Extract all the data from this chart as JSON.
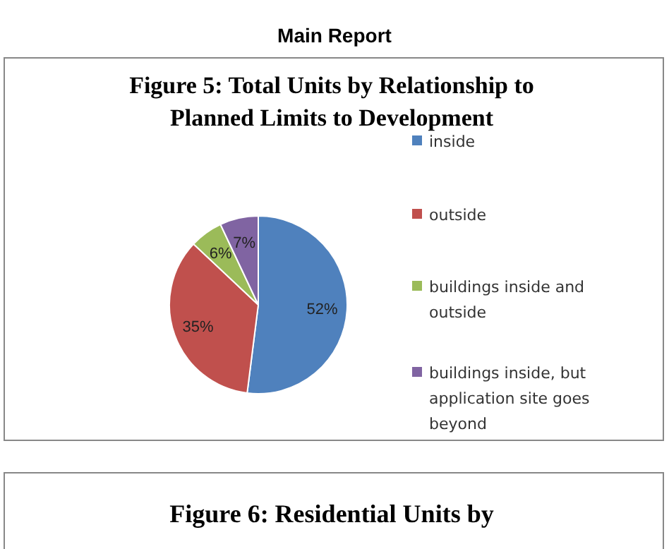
{
  "chart_data": {
    "type": "pie",
    "title": "Figure 5: Total Units by Relationship to Planned Limits to Development",
    "categories": [
      "inside",
      "outside",
      "buildings inside and outside",
      "buildings inside, but application site goes beyond"
    ],
    "values": [
      52,
      35,
      6,
      7
    ],
    "colors": [
      "#4f81bd",
      "#c0504d",
      "#9bbb59",
      "#8064a2"
    ],
    "value_labels": [
      "52%",
      "35%",
      "6%",
      "7%"
    ],
    "legend": "right",
    "annotations": [
      "Main Report",
      "Figure 6: Residential Units by"
    ]
  }
}
